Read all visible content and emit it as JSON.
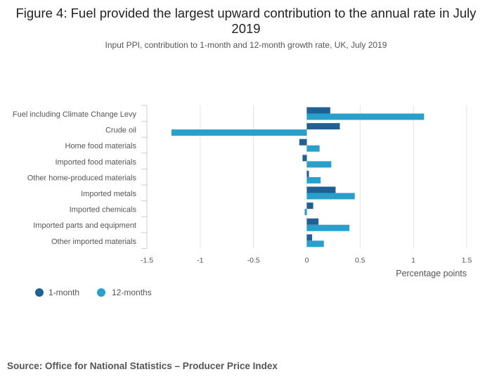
{
  "chart_data": {
    "type": "bar",
    "orientation": "horizontal",
    "title": "Figure 4: Fuel provided the largest upward contribution to the annual rate in July 2019",
    "subtitle": "Input PPI, contribution to 1-month and 12-month growth rate, UK, July 2019",
    "xlabel": "Percentage points",
    "ylabel": "",
    "xlim": [
      -1.5,
      1.5
    ],
    "xticks": [
      -1.5,
      -1,
      -0.5,
      0,
      0.5,
      1,
      1.5
    ],
    "xtick_labels": [
      "-1.5",
      "-1",
      "-0.5",
      "0",
      "0.5",
      "1",
      "1.5"
    ],
    "grid": true,
    "legend_position": "bottom-left",
    "categories": [
      "Fuel including Climate Change Levy",
      "Crude oil",
      "Home food materials",
      "Imported food materials",
      "Other home-produced materials",
      "Imported metals",
      "Imported chemicals",
      "Imported parts and equipment",
      "Other imported materials"
    ],
    "series": [
      {
        "name": "1-month",
        "color": "#206095",
        "values": [
          0.22,
          0.31,
          -0.07,
          -0.04,
          0.02,
          0.27,
          0.06,
          0.11,
          0.05
        ]
      },
      {
        "name": "12-months",
        "color": "#27a0cc",
        "values": [
          1.1,
          -1.27,
          0.12,
          0.23,
          0.13,
          0.45,
          -0.02,
          0.4,
          0.16
        ]
      }
    ]
  },
  "source": "Source: Office for National Statistics – Producer Price Index"
}
